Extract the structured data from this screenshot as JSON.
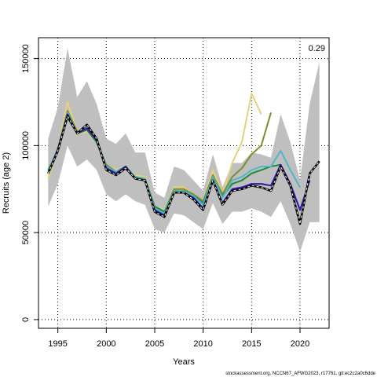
{
  "chart_data": {
    "type": "line",
    "xlabel": "Years",
    "ylabel": "Recruits (age 2)",
    "xlim": [
      1993,
      2023
    ],
    "ylim": [
      -5000,
      162000
    ],
    "x_ticks": [
      1995,
      2000,
      2005,
      2010,
      2015,
      2020
    ],
    "y_ticks": [
      0,
      50000,
      100000,
      150000
    ],
    "grid": "dotted",
    "annotation": "0.29",
    "footer": "stockassessment.org, NCCN67_AFWG2023, r17761, git:ec2c2a0c6dde",
    "confidence_band": {
      "x": [
        1994,
        1995,
        1996,
        1997,
        1998,
        1999,
        2000,
        2001,
        2002,
        2003,
        2004,
        2005,
        2006,
        2007,
        2008,
        2009,
        2010,
        2011,
        2012,
        2013,
        2014,
        2015,
        2016,
        2017,
        2018,
        2019,
        2020,
        2021,
        2022
      ],
      "upper": [
        104000,
        122000,
        156000,
        128000,
        137000,
        124000,
        104000,
        101000,
        107000,
        96000,
        96000,
        73000,
        70000,
        88000,
        86000,
        80000,
        74000,
        95000,
        76000,
        90000,
        90000,
        96000,
        95000,
        93000,
        118000,
        102000,
        80000,
        124000,
        148000
      ],
      "lower": [
        65000,
        78000,
        100000,
        88000,
        92000,
        86000,
        72000,
        68000,
        72000,
        68000,
        66000,
        52000,
        50000,
        61000,
        60000,
        56000,
        52000,
        67000,
        55000,
        62000,
        62000,
        64000,
        62000,
        59000,
        68000,
        55000,
        39000,
        56000,
        56000
      ]
    },
    "series": [
      {
        "x": [
          1994,
          1995,
          1996,
          1997,
          1998,
          1999,
          2000,
          2001,
          2002,
          2003,
          2004,
          2005,
          2006,
          2007,
          2008,
          2009,
          2010,
          2011,
          2012,
          2013,
          2014,
          2015,
          2016,
          2017,
          2018,
          2019,
          2020,
          2021,
          2022
        ],
        "values": [
          84000,
          97000,
          117000,
          107000,
          112000,
          104000,
          86000,
          83000,
          87000,
          81000,
          80000,
          62000,
          59000,
          73000,
          73000,
          69000,
          63000,
          80000,
          66000,
          74000,
          75000,
          77000,
          76000,
          74000,
          88000,
          77000,
          55000,
          84000,
          91000
        ],
        "color": "#000000",
        "style": "dashed"
      },
      {
        "x": [
          1994,
          1995,
          1996,
          1997,
          1998,
          1999,
          2000,
          2001,
          2002,
          2003,
          2004,
          2005,
          2006,
          2007,
          2008,
          2009,
          2010,
          2011,
          2012,
          2013,
          2014,
          2015,
          2016,
          2017,
          2018,
          2019,
          2020,
          2021
        ],
        "values": [
          84000,
          98000,
          118000,
          107000,
          110000,
          103000,
          87000,
          84000,
          88000,
          81000,
          80000,
          63000,
          60000,
          73000,
          73000,
          70000,
          64000,
          80000,
          67000,
          75000,
          76000,
          78000,
          78000,
          77000,
          89000,
          78000,
          63000,
          80000
        ],
        "color": "#2a1aa0",
        "style": "solid"
      },
      {
        "x": [
          1994,
          1995,
          1996,
          1997,
          1998,
          1999,
          2000,
          2001,
          2002,
          2003,
          2004,
          2005,
          2006,
          2007,
          2008,
          2009,
          2010,
          2011,
          2012,
          2013,
          2014,
          2015,
          2016,
          2017,
          2018,
          2019,
          2020
        ],
        "values": [
          85000,
          98000,
          119000,
          107000,
          110000,
          103000,
          88000,
          85000,
          88000,
          82000,
          81000,
          64000,
          61000,
          74000,
          74000,
          71000,
          66000,
          82000,
          70000,
          80000,
          82000,
          86000,
          88000,
          88000,
          97000,
          86000,
          76000
        ],
        "color": "#4fb6c8",
        "style": "solid"
      },
      {
        "x": [
          1994,
          1995,
          1996,
          1997,
          1998,
          1999,
          2000,
          2001,
          2002,
          2003,
          2004,
          2005,
          2006,
          2007,
          2008,
          2009,
          2010,
          2011,
          2012,
          2013,
          2014,
          2015,
          2016,
          2017,
          2018
        ],
        "values": [
          86000,
          97000,
          116000,
          107000,
          109000,
          102000,
          88000,
          85000,
          88000,
          82000,
          81000,
          65000,
          62000,
          74000,
          74000,
          71000,
          67000,
          81000,
          71000,
          78000,
          80000,
          84000,
          86000,
          88000,
          89000
        ],
        "color": "#1e8a3c",
        "style": "solid"
      },
      {
        "x": [
          1994,
          1995,
          1996,
          1997,
          1998,
          1999,
          2000,
          2001,
          2002,
          2003,
          2004,
          2005,
          2006,
          2007,
          2008,
          2009,
          2010,
          2011,
          2012,
          2013,
          2014,
          2015,
          2016,
          2017
        ],
        "values": [
          84000,
          98000,
          120000,
          108000,
          109000,
          102000,
          89000,
          85000,
          88000,
          82000,
          81000,
          65000,
          62000,
          75000,
          75000,
          72000,
          68000,
          83000,
          72000,
          82000,
          87000,
          95000,
          100000,
          119000
        ],
        "color": "#7f8c2a",
        "style": "solid"
      },
      {
        "x": [
          1994,
          1995,
          1996,
          1997,
          1998,
          1999,
          2000,
          2001,
          2002,
          2003,
          2004,
          2005,
          2006,
          2007,
          2008,
          2009,
          2010,
          2011,
          2012,
          2013,
          2014,
          2015,
          2016
        ],
        "values": [
          81000,
          98000,
          125000,
          107000,
          108000,
          102000,
          89000,
          86000,
          88000,
          83000,
          82000,
          65000,
          63000,
          76000,
          76000,
          72000,
          68000,
          86000,
          72000,
          90000,
          102000,
          130000,
          118000
        ],
        "color": "#e4d27a",
        "style": "solid"
      }
    ]
  }
}
